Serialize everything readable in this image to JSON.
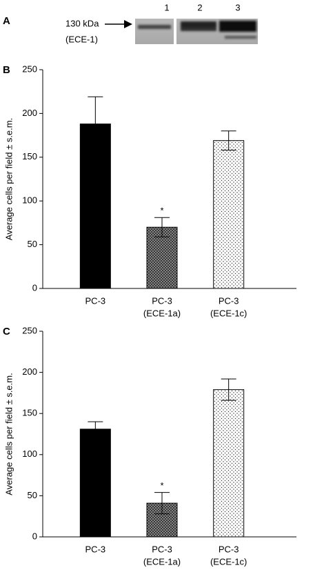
{
  "panel_a": {
    "label": "A",
    "marker": "130 kDa",
    "protein": "(ECE-1)",
    "lanes": [
      "1",
      "2",
      "3"
    ]
  },
  "chart_data": [
    {
      "type": "bar",
      "panel": "B",
      "y_label": "Average cells per field ± s.e.m.",
      "categories": [
        [
          "PC-3"
        ],
        [
          "PC-3",
          "(ECE-1a)"
        ],
        [
          "PC-3",
          "(ECE-1c)"
        ]
      ],
      "values": [
        188,
        70,
        169
      ],
      "errors": [
        31,
        11,
        11
      ],
      "markers": [
        null,
        "*",
        null
      ],
      "fills": [
        "solid",
        "crosshatch",
        "dots"
      ],
      "color": "#000000",
      "ylim": [
        0,
        250
      ],
      "yticks": [
        0,
        50,
        100,
        150,
        200,
        250
      ]
    },
    {
      "type": "bar",
      "panel": "C",
      "y_label": "Average cells per field ± s.e.m.",
      "categories": [
        [
          "PC-3"
        ],
        [
          "PC-3",
          "(ECE-1a)"
        ],
        [
          "PC-3",
          "(ECE-1c)"
        ]
      ],
      "values": [
        131,
        41,
        179
      ],
      "errors": [
        9,
        13,
        13
      ],
      "markers": [
        null,
        "*",
        null
      ],
      "fills": [
        "solid",
        "crosshatch",
        "dots"
      ],
      "color": "#000000",
      "ylim": [
        0,
        250
      ],
      "yticks": [
        0,
        50,
        100,
        150,
        200,
        250
      ]
    }
  ]
}
